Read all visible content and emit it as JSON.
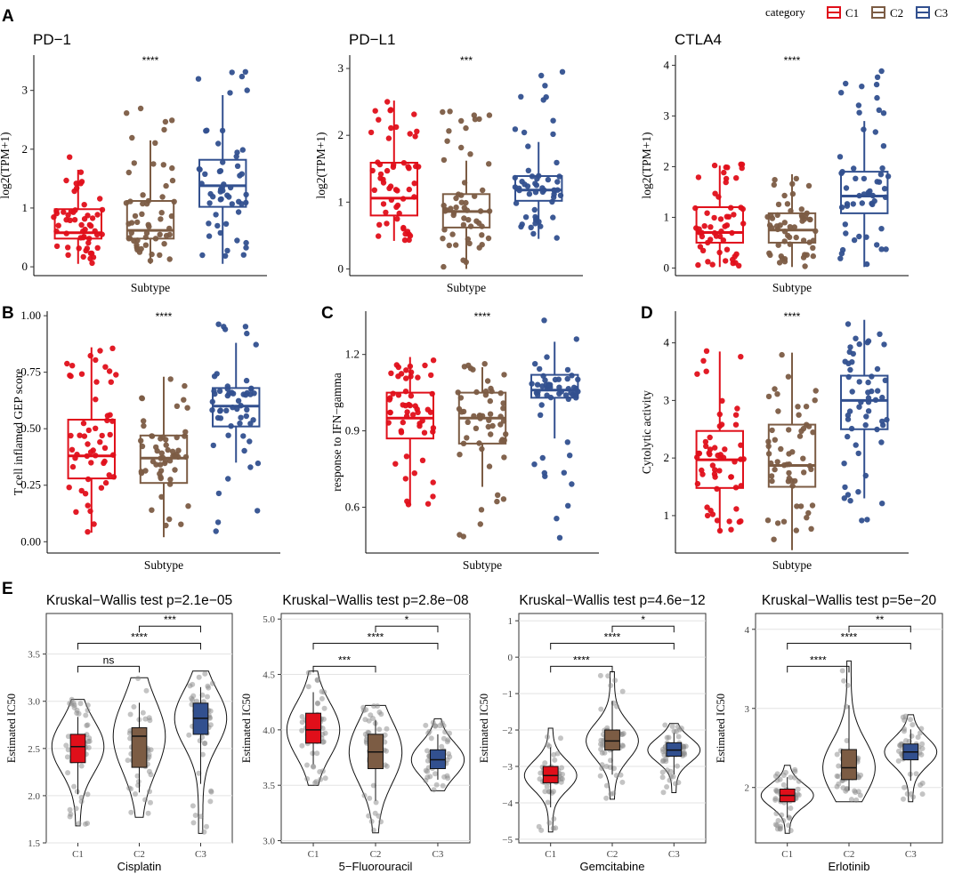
{
  "legend": {
    "title": "category",
    "items": [
      {
        "label": "C1",
        "color": "#e00f1a"
      },
      {
        "label": "C2",
        "color": "#7c5c44"
      },
      {
        "label": "C3",
        "color": "#32508f"
      }
    ]
  },
  "colors": {
    "C1": "#e00f1a",
    "C2": "#7c5c44",
    "C3": "#32508f"
  },
  "chart_data": [
    {
      "type": "box",
      "panel": "A",
      "title": "PD−1",
      "significance": "****",
      "ylabel": "log2(TPM+1)",
      "xlabel": "Subtype",
      "ylim": [
        -0.15,
        3.6
      ],
      "yticks": [
        0,
        1,
        2,
        3
      ],
      "groups": [
        {
          "name": "C1",
          "q1": 0.48,
          "median": 0.58,
          "q3": 0.98,
          "lo": 0.05,
          "hi": 1.65,
          "min": 0.05,
          "max": 1.93
        },
        {
          "name": "C2",
          "q1": 0.48,
          "median": 0.62,
          "q3": 1.12,
          "lo": 0.05,
          "hi": 2.15,
          "min": 0.05,
          "max": 2.72
        },
        {
          "name": "C3",
          "q1": 1.02,
          "median": 1.38,
          "q3": 1.82,
          "lo": 0.05,
          "hi": 2.92,
          "min": 0.05,
          "max": 3.42
        }
      ]
    },
    {
      "type": "box",
      "panel": "",
      "title": "PD−L1",
      "significance": "***",
      "ylabel": "log2(TPM+1)",
      "xlabel": "Subtype",
      "ylim": [
        -0.1,
        3.2
      ],
      "yticks": [
        0,
        1,
        2,
        3
      ],
      "groups": [
        {
          "name": "C1",
          "q1": 0.8,
          "median": 1.06,
          "q3": 1.59,
          "lo": 0.42,
          "hi": 2.52,
          "min": 0.42,
          "max": 2.55
        },
        {
          "name": "C2",
          "q1": 0.62,
          "median": 0.86,
          "q3": 1.12,
          "lo": 0.0,
          "hi": 1.62,
          "min": 0.0,
          "max": 2.48
        },
        {
          "name": "C3",
          "q1": 1.02,
          "median": 1.18,
          "q3": 1.39,
          "lo": 0.45,
          "hi": 1.9,
          "min": 0.45,
          "max": 2.98
        }
      ]
    },
    {
      "type": "box",
      "panel": "",
      "title": "CTLA4",
      "significance": "****",
      "ylabel": "log2(TPM+1)",
      "xlabel": "Subtype",
      "ylim": [
        -0.15,
        4.2
      ],
      "yticks": [
        0,
        1,
        2,
        3,
        4
      ],
      "groups": [
        {
          "name": "C1",
          "q1": 0.5,
          "median": 0.7,
          "q3": 1.2,
          "lo": 0.02,
          "hi": 2.02,
          "min": 0.02,
          "max": 2.05
        },
        {
          "name": "C2",
          "q1": 0.5,
          "median": 0.75,
          "q3": 1.08,
          "lo": 0.02,
          "hi": 1.85,
          "min": 0.02,
          "max": 1.88
        },
        {
          "name": "C3",
          "q1": 1.08,
          "median": 1.42,
          "q3": 1.9,
          "lo": 0.02,
          "hi": 2.9,
          "min": 0.02,
          "max": 3.92
        }
      ]
    },
    {
      "type": "box",
      "panel": "B",
      "title": "",
      "significance": "****",
      "ylabel": "T cell inflamed GEP score",
      "xlabel": "Subtype",
      "ylim": [
        -0.05,
        1.02
      ],
      "yticks": [
        "0.00",
        "0.25",
        "0.50",
        "0.75",
        "1.00"
      ],
      "groups": [
        {
          "name": "C1",
          "q1": 0.28,
          "median": 0.38,
          "q3": 0.54,
          "lo": 0.04,
          "hi": 0.86,
          "min": 0.04,
          "max": 0.87
        },
        {
          "name": "C2",
          "q1": 0.26,
          "median": 0.37,
          "q3": 0.47,
          "lo": 0.02,
          "hi": 0.73,
          "min": 0.02,
          "max": 0.73
        },
        {
          "name": "C3",
          "q1": 0.51,
          "median": 0.6,
          "q3": 0.68,
          "lo": 0.35,
          "hi": 0.88,
          "min": -0.03,
          "max": 0.97
        }
      ]
    },
    {
      "type": "box",
      "panel": "C",
      "title": "",
      "significance": "****",
      "ylabel": "response to IFN−gamma",
      "xlabel": "Subtype",
      "ylim": [
        0.42,
        1.37
      ],
      "yticks": [
        "0.6",
        "0.9",
        "1.2"
      ],
      "groups": [
        {
          "name": "C1",
          "q1": 0.87,
          "median": 0.95,
          "q3": 1.05,
          "lo": 0.61,
          "hi": 1.19,
          "min": 0.61,
          "max": 1.19
        },
        {
          "name": "C2",
          "q1": 0.85,
          "median": 0.95,
          "q3": 1.05,
          "lo": 0.68,
          "hi": 1.15,
          "min": 0.47,
          "max": 1.17
        },
        {
          "name": "C3",
          "q1": 1.03,
          "median": 1.06,
          "q3": 1.12,
          "lo": 0.87,
          "hi": 1.25,
          "min": 0.45,
          "max": 1.35
        }
      ]
    },
    {
      "type": "box",
      "panel": "D",
      "title": "",
      "significance": "****",
      "ylabel": "Cytolytic activity",
      "xlabel": "Subtype",
      "ylim": [
        0.35,
        4.55
      ],
      "yticks": [
        1,
        2,
        3,
        4
      ],
      "groups": [
        {
          "name": "C1",
          "q1": 1.48,
          "median": 1.97,
          "q3": 2.47,
          "lo": 0.72,
          "hi": 3.85,
          "min": 0.72,
          "max": 3.87
        },
        {
          "name": "C2",
          "q1": 1.5,
          "median": 1.87,
          "q3": 2.58,
          "lo": 0.4,
          "hi": 3.83,
          "min": 0.4,
          "max": 3.85
        },
        {
          "name": "C3",
          "q1": 2.5,
          "median": 3.0,
          "q3": 3.43,
          "lo": 1.3,
          "hi": 4.4,
          "min": 0.75,
          "max": 4.4
        }
      ]
    },
    {
      "type": "violin",
      "panel": "E",
      "title": "Kruskal−Wallis test p=2.1e−05",
      "ylabel": "Estimated IC50",
      "xlabel": "Cisplatin",
      "ylim": [
        1.5,
        3.93
      ],
      "yticks": [
        "1.5",
        "2.0",
        "2.5",
        "3.0",
        "3.5"
      ],
      "groups": [
        {
          "name": "C1",
          "q1": 2.35,
          "median": 2.52,
          "q3": 2.65,
          "min": 1.68,
          "max": 3.02
        },
        {
          "name": "C2",
          "q1": 2.3,
          "median": 2.63,
          "q3": 2.72,
          "min": 1.77,
          "max": 3.25
        },
        {
          "name": "C3",
          "q1": 2.65,
          "median": 2.82,
          "q3": 2.98,
          "min": 1.6,
          "max": 3.32
        }
      ],
      "comparisons": [
        {
          "from": "C1",
          "to": "C2",
          "label": "ns"
        },
        {
          "from": "C1",
          "to": "C3",
          "label": "****"
        },
        {
          "from": "C2",
          "to": "C3",
          "label": "***"
        }
      ]
    },
    {
      "type": "violin",
      "panel": "",
      "title": "Kruskal−Wallis test p=2.8e−08",
      "ylabel": "Estimated IC50",
      "xlabel": "5−Fluorouracil",
      "ylim": [
        2.98,
        5.05
      ],
      "yticks": [
        "3.0",
        "3.5",
        "4.0",
        "4.5",
        "5.0"
      ],
      "groups": [
        {
          "name": "C1",
          "q1": 3.88,
          "median": 4.0,
          "q3": 4.15,
          "min": 3.5,
          "max": 4.53
        },
        {
          "name": "C2",
          "q1": 3.65,
          "median": 3.8,
          "q3": 3.96,
          "min": 3.07,
          "max": 4.22
        },
        {
          "name": "C3",
          "q1": 3.65,
          "median": 3.73,
          "q3": 3.82,
          "min": 3.45,
          "max": 4.1
        }
      ],
      "comparisons": [
        {
          "from": "C1",
          "to": "C2",
          "label": "***"
        },
        {
          "from": "C1",
          "to": "C3",
          "label": "****"
        },
        {
          "from": "C2",
          "to": "C3",
          "label": "*"
        }
      ]
    },
    {
      "type": "violin",
      "panel": "",
      "title": "Kruskal−Wallis test p=4.6e−12",
      "ylabel": "Estimated IC50",
      "xlabel": "Gemcitabine",
      "ylim": [
        -5.1,
        1.2
      ],
      "yticks": [
        "−5",
        "−4",
        "−3",
        "−2",
        "−1",
        "0",
        "1"
      ],
      "groups": [
        {
          "name": "C1",
          "q1": -3.45,
          "median": -3.25,
          "q3": -3.0,
          "min": -4.8,
          "max": -1.95
        },
        {
          "name": "C2",
          "q1": -2.55,
          "median": -2.3,
          "q3": -2.0,
          "min": -3.9,
          "max": -0.4
        },
        {
          "name": "C3",
          "q1": -2.72,
          "median": -2.55,
          "q3": -2.35,
          "min": -3.72,
          "max": -1.82
        }
      ],
      "comparisons": [
        {
          "from": "C1",
          "to": "C2",
          "label": "****"
        },
        {
          "from": "C1",
          "to": "C3",
          "label": "****"
        },
        {
          "from": "C2",
          "to": "C3",
          "label": "*"
        }
      ]
    },
    {
      "type": "violin",
      "panel": "",
      "title": "Kruskal−Wallis test p=5e−20",
      "ylabel": "Estimated IC50",
      "xlabel": "Erlotinib",
      "ylim": [
        1.3,
        4.2
      ],
      "yticks": [
        "2",
        "3",
        "4"
      ],
      "groups": [
        {
          "name": "C1",
          "q1": 1.82,
          "median": 1.9,
          "q3": 1.98,
          "min": 1.42,
          "max": 2.28
        },
        {
          "name": "C2",
          "q1": 2.1,
          "median": 2.25,
          "q3": 2.48,
          "min": 1.82,
          "max": 3.6
        },
        {
          "name": "C3",
          "q1": 2.35,
          "median": 2.45,
          "q3": 2.55,
          "min": 1.82,
          "max": 2.92
        }
      ],
      "comparisons": [
        {
          "from": "C1",
          "to": "C2",
          "label": "****"
        },
        {
          "from": "C1",
          "to": "C3",
          "label": "****"
        },
        {
          "from": "C2",
          "to": "C3",
          "label": "**"
        }
      ]
    }
  ]
}
